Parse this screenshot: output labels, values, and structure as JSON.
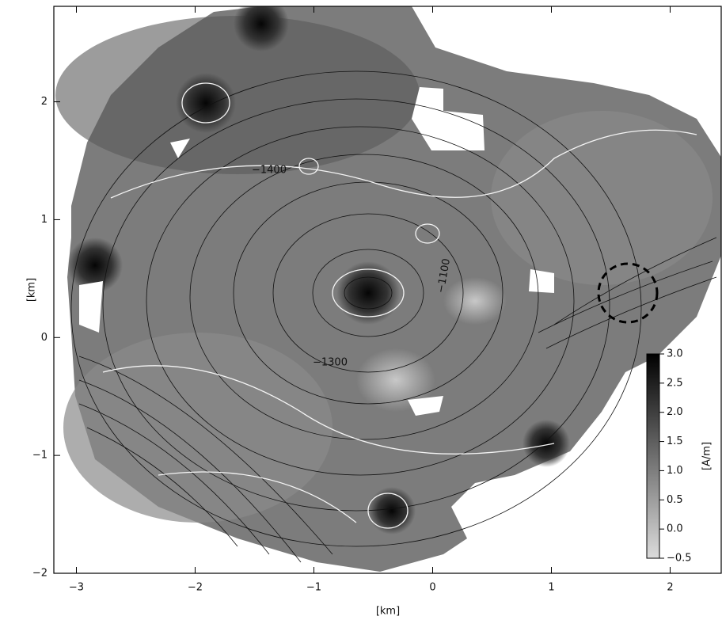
{
  "map": {
    "x_axis": {
      "label": "[km]",
      "lim": [
        -3.19,
        2.43
      ],
      "ticks": [
        {
          "value": -3,
          "label": "−3"
        },
        {
          "value": -2,
          "label": "−2"
        },
        {
          "value": -1,
          "label": "−1"
        },
        0,
        1,
        2
      ]
    },
    "y_axis": {
      "label": "[km]",
      "lim": [
        -2,
        2.81
      ],
      "ticks": [
        {
          "value": -2,
          "label": "−2"
        },
        {
          "value": -1,
          "label": "−1"
        },
        0,
        1,
        2
      ]
    },
    "colorbar": {
      "label": "[A/m]",
      "lim": [
        -0.5,
        3
      ],
      "ticks": [
        {
          "value": 3,
          "label": "3.0"
        },
        2.5,
        {
          "value": 2,
          "label": "2.0"
        },
        1.5,
        {
          "value": 1,
          "label": "1.0"
        },
        0.5,
        {
          "value": 0,
          "label": "0.0"
        },
        {
          "value": -0.5,
          "label": "−0.5"
        }
      ]
    },
    "contour_labels": [
      "−1400",
      "−1300",
      "−1100"
    ]
  }
}
